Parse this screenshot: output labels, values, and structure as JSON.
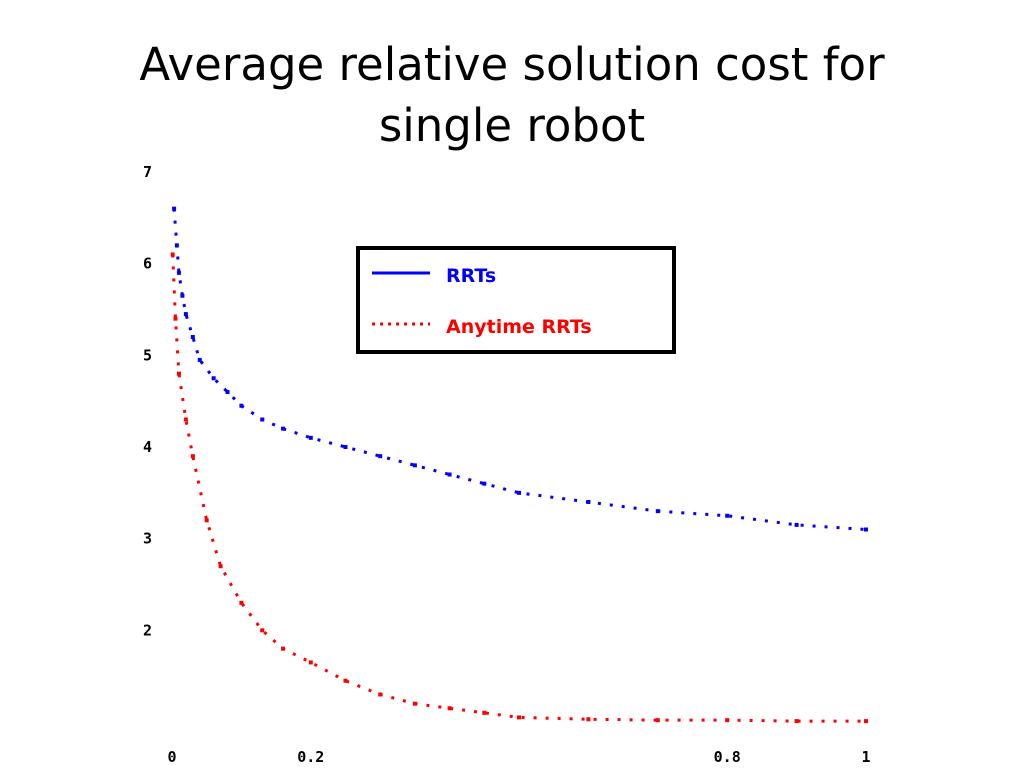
{
  "slide": {
    "title_line1": "Average relative solution cost for",
    "title_line2": "single robot"
  },
  "chart_data": {
    "type": "line",
    "title": "",
    "xlabel": "",
    "ylabel": "",
    "xlim": [
      0,
      1
    ],
    "ylim": [
      1,
      7
    ],
    "x_ticks": [
      0,
      0.2,
      0.8,
      1
    ],
    "x_tick_labels": [
      "0",
      "0.2",
      "0.8",
      "1"
    ],
    "y_ticks": [
      2,
      3,
      4,
      5,
      6,
      7
    ],
    "y_tick_labels": [
      "2",
      "3",
      "4",
      "5",
      "6",
      "7"
    ],
    "grid": false,
    "legend_position": "top-center",
    "series": [
      {
        "name": "RRTs",
        "color": "#0000ff",
        "line_style": "dotted",
        "x": [
          0.003,
          0.007,
          0.01,
          0.015,
          0.02,
          0.03,
          0.04,
          0.06,
          0.08,
          0.1,
          0.13,
          0.16,
          0.2,
          0.25,
          0.3,
          0.35,
          0.4,
          0.45,
          0.5,
          0.6,
          0.7,
          0.8,
          0.9,
          1.0
        ],
        "y": [
          6.6,
          6.2,
          5.9,
          5.65,
          5.45,
          5.2,
          4.95,
          4.75,
          4.6,
          4.45,
          4.3,
          4.2,
          4.1,
          4.0,
          3.9,
          3.8,
          3.7,
          3.6,
          3.5,
          3.4,
          3.3,
          3.25,
          3.15,
          3.1
        ]
      },
      {
        "name": "Anytime RRTs",
        "color": "#ff0000",
        "line_style": "dotted",
        "x": [
          0.001,
          0.005,
          0.01,
          0.02,
          0.03,
          0.05,
          0.07,
          0.1,
          0.13,
          0.16,
          0.2,
          0.25,
          0.3,
          0.35,
          0.4,
          0.45,
          0.5,
          0.6,
          0.7,
          0.8,
          0.9,
          1.0
        ],
        "y": [
          6.1,
          5.4,
          4.8,
          4.3,
          3.9,
          3.2,
          2.7,
          2.3,
          2.0,
          1.8,
          1.65,
          1.45,
          1.3,
          1.2,
          1.15,
          1.1,
          1.05,
          1.03,
          1.02,
          1.02,
          1.01,
          1.01
        ]
      }
    ]
  }
}
